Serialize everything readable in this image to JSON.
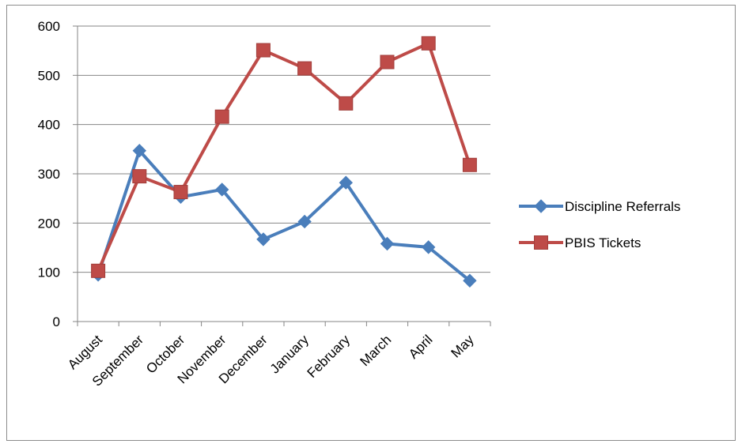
{
  "chart_data": {
    "type": "line",
    "title": "",
    "xlabel": "",
    "ylabel": "",
    "categories": [
      "August",
      "September",
      "October",
      "November",
      "December",
      "January",
      "February",
      "March",
      "April",
      "May"
    ],
    "ylim": [
      0,
      600
    ],
    "y_ticks": [
      0,
      100,
      200,
      300,
      400,
      500,
      600
    ],
    "y_tick_labels": [
      "0",
      "100",
      "200",
      "300",
      "400",
      "500",
      "600"
    ],
    "grid": "horizontal",
    "legend_position": "right",
    "series": [
      {
        "name": "Discipline Referrals",
        "color": "#4a7ebb",
        "marker": "diamond",
        "values": [
          95,
          347,
          253,
          268,
          167,
          203,
          282,
          158,
          151,
          83
        ]
      },
      {
        "name": "PBIS Tickets",
        "color": "#be4b48",
        "marker": "square",
        "values": [
          103,
          295,
          263,
          416,
          551,
          514,
          443,
          527,
          565,
          318
        ]
      }
    ]
  }
}
